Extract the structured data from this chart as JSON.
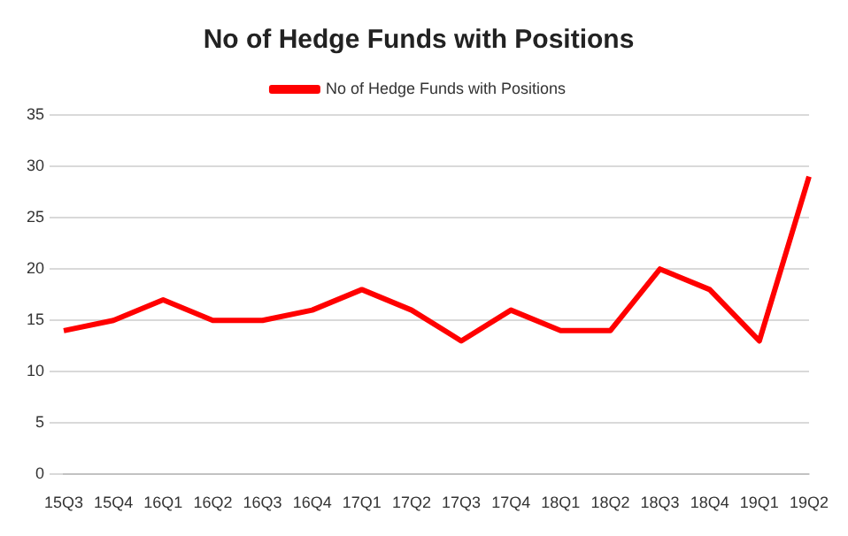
{
  "chart_data": {
    "type": "line",
    "title": "No of Hedge Funds with Positions",
    "categories": [
      "15Q3",
      "15Q4",
      "16Q1",
      "16Q2",
      "16Q3",
      "16Q4",
      "17Q1",
      "17Q2",
      "17Q3",
      "17Q4",
      "18Q1",
      "18Q2",
      "18Q3",
      "18Q4",
      "19Q1",
      "19Q2"
    ],
    "series": [
      {
        "name": "No of Hedge Funds with Positions",
        "color": "#ff0000",
        "values": [
          14,
          15,
          17,
          15,
          15,
          16,
          18,
          16,
          13,
          16,
          14,
          14,
          20,
          18,
          13,
          29
        ]
      }
    ],
    "ylim": [
      0,
      35
    ],
    "yticks": [
      0,
      5,
      10,
      15,
      20,
      25,
      30,
      35
    ],
    "grid": "y",
    "legend": "top",
    "marker": "none",
    "line_style": "solid"
  }
}
